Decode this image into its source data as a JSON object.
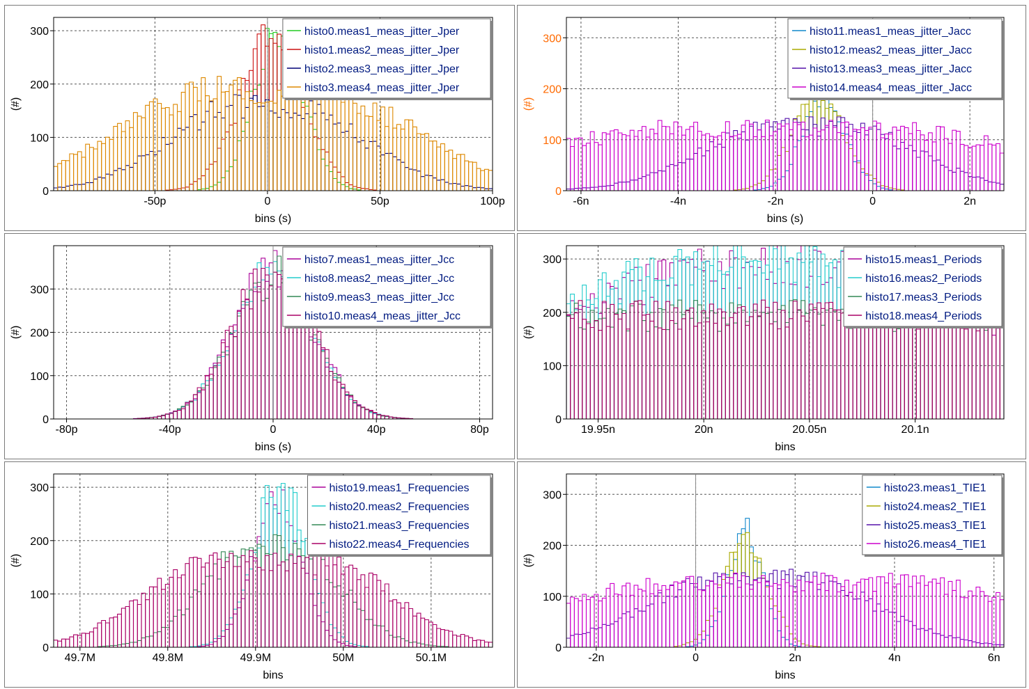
{
  "chart_data": [
    {
      "type": "bar",
      "xlabel": "bins (s)",
      "ylabel": "(#)",
      "xlim": [
        -9.5e-11,
        1e-10
      ],
      "ylim": [
        0,
        325
      ],
      "x_ticks": [
        -5e-11,
        0,
        5e-11,
        1e-10
      ],
      "x_tick_labels": [
        "-50p",
        "0",
        "50p",
        "100p"
      ],
      "y_ticks": [
        0,
        100,
        200,
        300
      ],
      "y_tick_labels": [
        "0",
        "100",
        "200",
        "300"
      ],
      "y_tick_color": "#000000",
      "grid": true,
      "legend_position": "top-right",
      "series": [
        {
          "name": "histo0.meas1_meas_jitter_Jper",
          "color": "#22cc22",
          "center": 5e-12,
          "sigma": 1.1e-11,
          "peak": 310
        },
        {
          "name": "histo1.meas2_meas_jitter_Jper",
          "color": "#cc1111",
          "center": 2e-12,
          "sigma": 1.4e-11,
          "peak": 300
        },
        {
          "name": "histo2.meas3_meas_jitter_Jper",
          "color": "#000077",
          "center": 0,
          "sigma": 3.2e-11,
          "peak": 165,
          "plateau": 2.2e-11
        },
        {
          "name": "histo3.meas4_meas_jitter_Jper",
          "color": "#dd8800",
          "center": 0,
          "sigma": 4.5e-11,
          "peak": 195,
          "plateau": 3.8e-11
        }
      ]
    },
    {
      "type": "bar",
      "xlabel": "bins (s)",
      "ylabel": "(#)",
      "xlim": [
        -6.3e-09,
        2.7e-09
      ],
      "ylim": [
        0,
        340
      ],
      "x_ticks": [
        -6e-09,
        -4e-09,
        -2e-09,
        0,
        2e-09
      ],
      "x_tick_labels": [
        "-6n",
        "-4n",
        "-2n",
        "0",
        "2n"
      ],
      "y_ticks": [
        0,
        100,
        200,
        300
      ],
      "y_tick_labels": [
        "0",
        "100",
        "200",
        "300"
      ],
      "y_tick_color": "#ff6a00",
      "grid": true,
      "legend_position": "top-right",
      "series": [
        {
          "name": "histo11.meas1_meas_jitter_Jacc",
          "color": "#1188cc",
          "center": -1e-09,
          "sigma": 4.5e-10,
          "peak": 185
        },
        {
          "name": "histo12.meas2_meas_jitter_Jacc",
          "color": "#aaaa00",
          "center": -1.1e-09,
          "sigma": 5.5e-10,
          "peak": 190
        },
        {
          "name": "histo13.meas3_meas_jitter_Jacc",
          "color": "#5511aa",
          "center": -1.3e-09,
          "sigma": 1.6e-09,
          "peak": 130,
          "plateau": 1.2e-09
        },
        {
          "name": "histo14.meas4_meas_jitter_Jacc",
          "color": "#cc00cc",
          "center": -2e-09,
          "sigma": 3.5e-09,
          "peak": 125,
          "plateau": 3.6e-09
        }
      ]
    },
    {
      "type": "bar",
      "xlabel": "bins (s)",
      "ylabel": "(#)",
      "xlim": [
        -8.5e-11,
        8.5e-11
      ],
      "ylim": [
        0,
        400
      ],
      "x_ticks": [
        -8e-11,
        -4e-11,
        0,
        4e-11,
        8e-11
      ],
      "x_tick_labels": [
        "-80p",
        "-40p",
        "0",
        "40p",
        "80p"
      ],
      "y_ticks": [
        0,
        100,
        200,
        300
      ],
      "y_tick_labels": [
        "0",
        "100",
        "200",
        "300"
      ],
      "y_tick_color": "#000000",
      "grid": true,
      "legend_position": "top-right",
      "series": [
        {
          "name": "histo7.meas1_meas_jitter_Jcc",
          "color": "#aa0099",
          "center": 0,
          "sigma": 1.55e-11,
          "peak": 360
        },
        {
          "name": "histo8.meas2_meas_jitter_Jcc",
          "color": "#22cccc",
          "center": 0,
          "sigma": 1.55e-11,
          "peak": 350
        },
        {
          "name": "histo9.meas3_meas_jitter_Jcc",
          "color": "#338855",
          "center": 0,
          "sigma": 1.55e-11,
          "peak": 340
        },
        {
          "name": "histo10.meas4_meas_jitter_Jcc",
          "color": "#aa0066",
          "center": 0,
          "sigma": 1.55e-11,
          "peak": 355
        }
      ]
    },
    {
      "type": "bar",
      "xlabel": "bins",
      "ylabel": "(#)",
      "xlim": [
        1.9935e-08,
        2.0142e-08
      ],
      "ylim": [
        0,
        325
      ],
      "x_ticks": [
        1.995e-08,
        2e-08,
        2.005e-08,
        2.01e-08
      ],
      "x_tick_labels": [
        "19.95n",
        "20n",
        "20.05n",
        "20.1n"
      ],
      "y_ticks": [
        0,
        100,
        200,
        300
      ],
      "y_tick_labels": [
        "0",
        "100",
        "200",
        "300"
      ],
      "y_tick_color": "#000000",
      "grid": true,
      "legend_position": "top-right",
      "series": [
        {
          "name": "histo15.meas1_Periods",
          "color": "#aa0099",
          "center": 2.003e-08,
          "sigma": 1.1e-10,
          "peak": 300
        },
        {
          "name": "histo16.meas2_Periods",
          "color": "#22cccc",
          "center": 2.003e-08,
          "sigma": 1.2e-10,
          "peak": 310
        },
        {
          "name": "histo17.meas3_Periods",
          "color": "#338855",
          "center": 2.0035e-08,
          "sigma": 2.2e-10,
          "peak": 200,
          "plateau": 2.2e-10
        },
        {
          "name": "histo18.meas4_Periods",
          "color": "#aa0066",
          "center": 2.0035e-08,
          "sigma": 3.2e-10,
          "peak": 200,
          "plateau": 4e-10
        }
      ]
    },
    {
      "type": "bar",
      "xlabel": "bins",
      "ylabel": "(#)",
      "xlim": [
        49670000.0,
        50170000.0
      ],
      "ylim": [
        0,
        325
      ],
      "x_ticks": [
        49700000.0,
        49800000.0,
        49900000.0,
        50000000.0,
        50100000.0
      ],
      "x_tick_labels": [
        "49.7M",
        "49.8M",
        "49.9M",
        "50M",
        "50.1M"
      ],
      "y_ticks": [
        0,
        100,
        200,
        300
      ],
      "y_tick_labels": [
        "0",
        "100",
        "200",
        "300"
      ],
      "y_tick_color": "#000000",
      "grid": true,
      "legend_position": "top-right",
      "series": [
        {
          "name": "histo19.meas1_Frequencies",
          "color": "#aa0099",
          "center": 49925000.0,
          "sigma": 27000.0,
          "peak": 300
        },
        {
          "name": "histo20.meas2_Frequencies",
          "color": "#22cccc",
          "center": 49928000.0,
          "sigma": 30000.0,
          "peak": 310
        },
        {
          "name": "histo21.meas3_Frequencies",
          "color": "#338855",
          "center": 49920000.0,
          "sigma": 55000.0,
          "peak": 190,
          "plateau": 50000.0
        },
        {
          "name": "histo22.meas4_Frequencies",
          "color": "#aa0066",
          "center": 49915000.0,
          "sigma": 80000.0,
          "peak": 165,
          "plateau": 120000.0
        }
      ]
    },
    {
      "type": "bar",
      "xlabel": "bins",
      "ylabel": "(#)",
      "xlim": [
        -2.6e-09,
        6.2e-09
      ],
      "ylim": [
        0,
        340
      ],
      "x_ticks": [
        -2e-09,
        0,
        2e-09,
        4e-09,
        6e-09
      ],
      "x_tick_labels": [
        "-2n",
        "0",
        "2n",
        "4n",
        "6n"
      ],
      "y_ticks": [
        0,
        100,
        200,
        300
      ],
      "y_tick_labels": [
        "0",
        "100",
        "200",
        "300"
      ],
      "y_tick_color": "#000000",
      "grid": true,
      "legend_position": "top-right",
      "series": [
        {
          "name": "histo23.meas1_TIE1",
          "color": "#1188cc",
          "center": 1e-09,
          "sigma": 3.5e-10,
          "peak": 240
        },
        {
          "name": "histo24.meas2_TIE1",
          "color": "#aaaa00",
          "center": 1e-09,
          "sigma": 4.5e-10,
          "peak": 220
        },
        {
          "name": "histo25.meas3_TIE1",
          "color": "#5511aa",
          "center": 1.3e-09,
          "sigma": 1.6e-09,
          "peak": 140,
          "plateau": 1.4e-09
        },
        {
          "name": "histo26.meas4_TIE1",
          "color": "#cc00cc",
          "center": 2e-09,
          "sigma": 3.5e-09,
          "peak": 130,
          "plateau": 3.6e-09
        }
      ]
    }
  ]
}
